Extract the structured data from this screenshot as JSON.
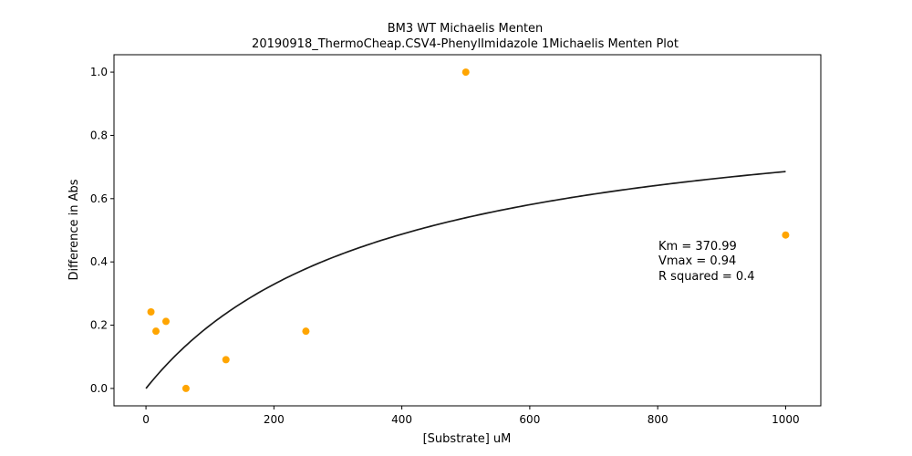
{
  "chart_data": {
    "type": "scatter",
    "title": "BM3 WT Michaelis Menten",
    "subtitle": "20190918_ThermoCheap.CSV4-PhenylImidazole 1Michaelis Menten Plot",
    "xlabel": "[Substrate] uM",
    "ylabel": "Difference in Abs",
    "xlim": [
      -50,
      1055
    ],
    "ylim": [
      -0.055,
      1.055
    ],
    "xticks": [
      0,
      200,
      400,
      600,
      800,
      1000
    ],
    "yticks": [
      0.0,
      0.2,
      0.4,
      0.6,
      0.8,
      1.0
    ],
    "xtick_labels": [
      "0",
      "200",
      "400",
      "600",
      "800",
      "1000"
    ],
    "ytick_labels": [
      "0.0",
      "0.2",
      "0.4",
      "0.6",
      "0.8",
      "1.0"
    ],
    "grid": false,
    "points": {
      "color": "#ffa500",
      "x": [
        7.8,
        15.6,
        31.25,
        62.5,
        125,
        250,
        500,
        1000
      ],
      "y": [
        0.242,
        0.181,
        0.212,
        0.0,
        0.091,
        0.181,
        1.0,
        0.485
      ]
    },
    "fit": {
      "model": "michaelis-menten",
      "color": "#1a1a1a",
      "Km": 370.99,
      "Vmax": 0.94,
      "x_range": [
        0,
        1000
      ]
    },
    "annotation": [
      "Km = 370.99",
      "Vmax = 0.94",
      "R squared = 0.4"
    ]
  }
}
